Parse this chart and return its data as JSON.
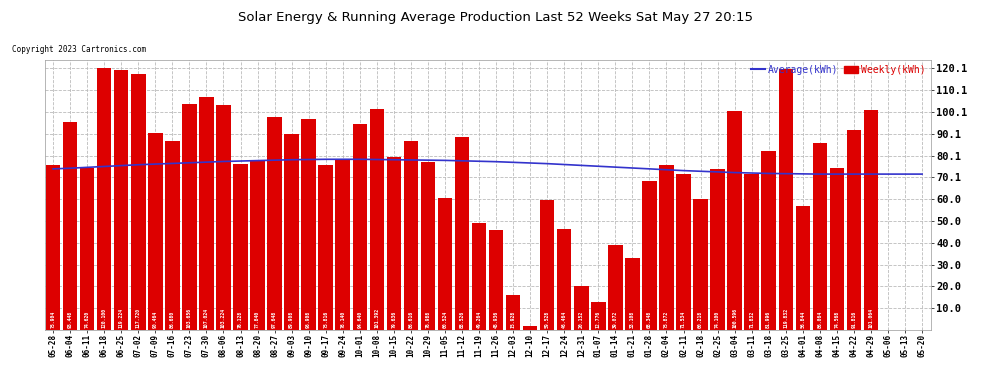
{
  "title": "Solar Energy & Running Average Production Last 52 Weeks Sat May 27 20:15",
  "copyright": "Copyright 2023 Cartronics.com",
  "legend_avg": "Average(kWh)",
  "legend_weekly": "Weekly(kWh)",
  "bar_color": "#dd0000",
  "avg_line_color": "#3333cc",
  "background_color": "#ffffff",
  "grid_color": "#bbbbbb",
  "ylim": [
    0.0,
    124.0
  ],
  "yticks": [
    10.0,
    20.0,
    30.0,
    40.0,
    50.0,
    60.0,
    70.1,
    80.1,
    90.1,
    100.1,
    110.1,
    120.1
  ],
  "categories": [
    "05-28",
    "06-04",
    "06-11",
    "06-18",
    "06-25",
    "07-02",
    "07-09",
    "07-16",
    "07-23",
    "07-30",
    "08-06",
    "08-13",
    "08-20",
    "08-27",
    "09-03",
    "09-10",
    "09-17",
    "09-24",
    "10-01",
    "10-08",
    "10-15",
    "10-22",
    "10-29",
    "11-05",
    "11-12",
    "11-19",
    "11-26",
    "12-03",
    "12-10",
    "12-17",
    "12-24",
    "12-31",
    "01-07",
    "01-14",
    "01-21",
    "01-28",
    "02-04",
    "02-11",
    "02-18",
    "02-25",
    "03-04",
    "03-11",
    "03-18",
    "03-25",
    "04-01",
    "04-08",
    "04-15",
    "04-22",
    "04-29",
    "05-06",
    "05-13",
    "05-20"
  ],
  "weekly_values": [
    75.904,
    95.448,
    74.62,
    120.1,
    119.224,
    117.72,
    90.464,
    86.68,
    103.656,
    107.024,
    103.224,
    76.128,
    77.84,
    97.648,
    89.908,
    96.908,
    75.816,
    78.14,
    94.64,
    101.392,
    79.636,
    86.616,
    76.988,
    60.524,
    88.526,
    49.264,
    45.936,
    15.928,
    1.928,
    59.528,
    46.464,
    20.152,
    12.776,
    39.072,
    33.108,
    68.348,
    75.872,
    71.534,
    60.218,
    74.1,
    100.596,
    71.832,
    81.996,
    119.832,
    56.844,
    86.064,
    74.568,
    91.816,
    101.064,
    0.0,
    0.0,
    0.0
  ],
  "value_labels": [
    "75.904",
    "95.448",
    "74.620",
    "120.100",
    "119.224",
    "117.720",
    "90.464",
    "86.680",
    "103.656",
    "107.024",
    "103.224",
    "76.128",
    "77.840",
    "97.648",
    "89.908",
    "96.908",
    "75.816",
    "78.140",
    "94.640",
    "101.392",
    "79.636",
    "86.616",
    "76.988",
    "60.524",
    "88.526",
    "49.264",
    "45.936",
    "15.928",
    "1.928",
    "59.528",
    "46.464",
    "20.152",
    "12.776",
    "39.072",
    "33.108",
    "68.348",
    "75.872",
    "71.534",
    "60.218",
    "74.100",
    "100.596",
    "71.832",
    "81.996",
    "119.832",
    "56.844",
    "86.064",
    "74.568",
    "91.816",
    "101.064",
    "",
    "",
    ""
  ],
  "avg_values": [
    74.0,
    74.3,
    74.7,
    75.1,
    75.5,
    75.9,
    76.2,
    76.5,
    76.8,
    77.1,
    77.4,
    77.6,
    77.8,
    78.0,
    78.2,
    78.3,
    78.4,
    78.4,
    78.4,
    78.3,
    78.2,
    78.1,
    78.0,
    77.9,
    77.7,
    77.5,
    77.3,
    77.0,
    76.7,
    76.4,
    76.0,
    75.6,
    75.2,
    74.8,
    74.4,
    74.0,
    73.6,
    73.2,
    72.9,
    72.6,
    72.3,
    72.1,
    71.9,
    71.8,
    71.7,
    71.6,
    71.6,
    71.6,
    71.6,
    71.6,
    71.6,
    71.6
  ]
}
